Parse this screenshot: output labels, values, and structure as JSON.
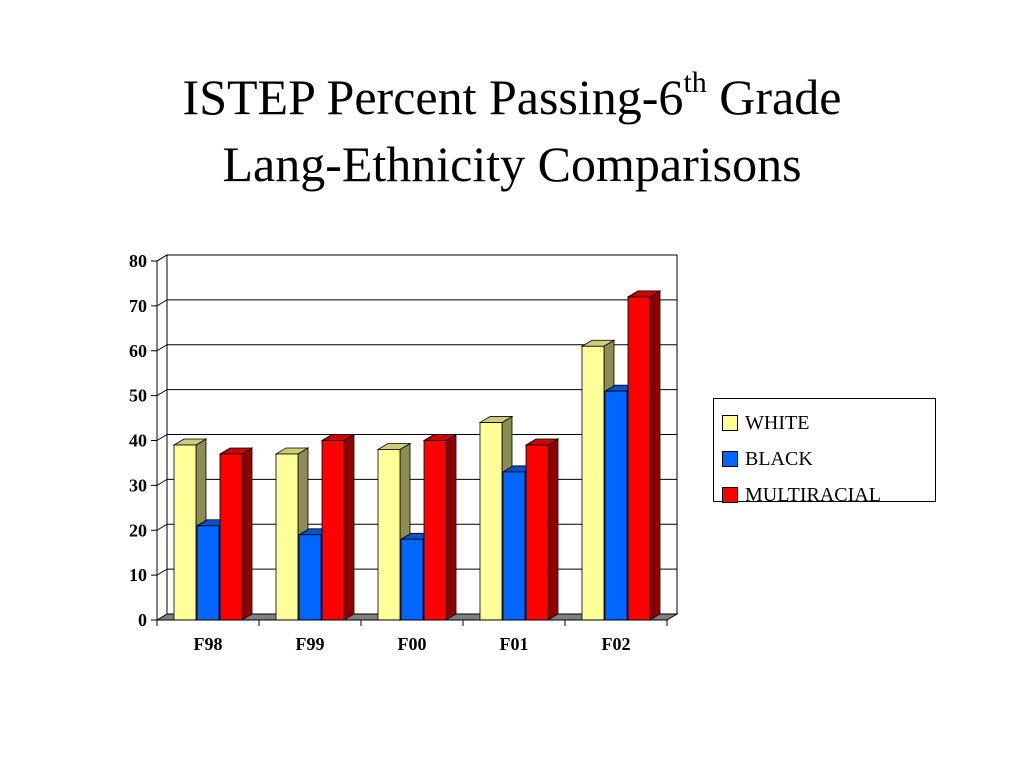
{
  "slide": {
    "title_line1": "ISTEP Percent Passing-6",
    "title_sup": "th",
    "title_line1_end": " Grade",
    "title_line2": "Lang-Ethnicity Comparisons"
  },
  "chart_data": {
    "type": "bar",
    "categories": [
      "F98",
      "F99",
      "F00",
      "F01",
      "F02"
    ],
    "series": [
      {
        "name": "WHITE",
        "values": [
          39,
          37,
          38,
          44,
          61
        ],
        "color": "#ffff99"
      },
      {
        "name": "BLACK",
        "values": [
          21,
          19,
          18,
          33,
          51
        ],
        "color": "#0066ff"
      },
      {
        "name": "MULTIRACIAL",
        "values": [
          37,
          40,
          40,
          39,
          72
        ],
        "color": "#ff0000"
      }
    ],
    "ylim": [
      0,
      80
    ],
    "yticks": [
      "0",
      "10",
      "20",
      "30",
      "40",
      "50",
      "60",
      "70",
      "80"
    ],
    "grid": true,
    "legend_position": "right",
    "style": "3d-clustered"
  }
}
